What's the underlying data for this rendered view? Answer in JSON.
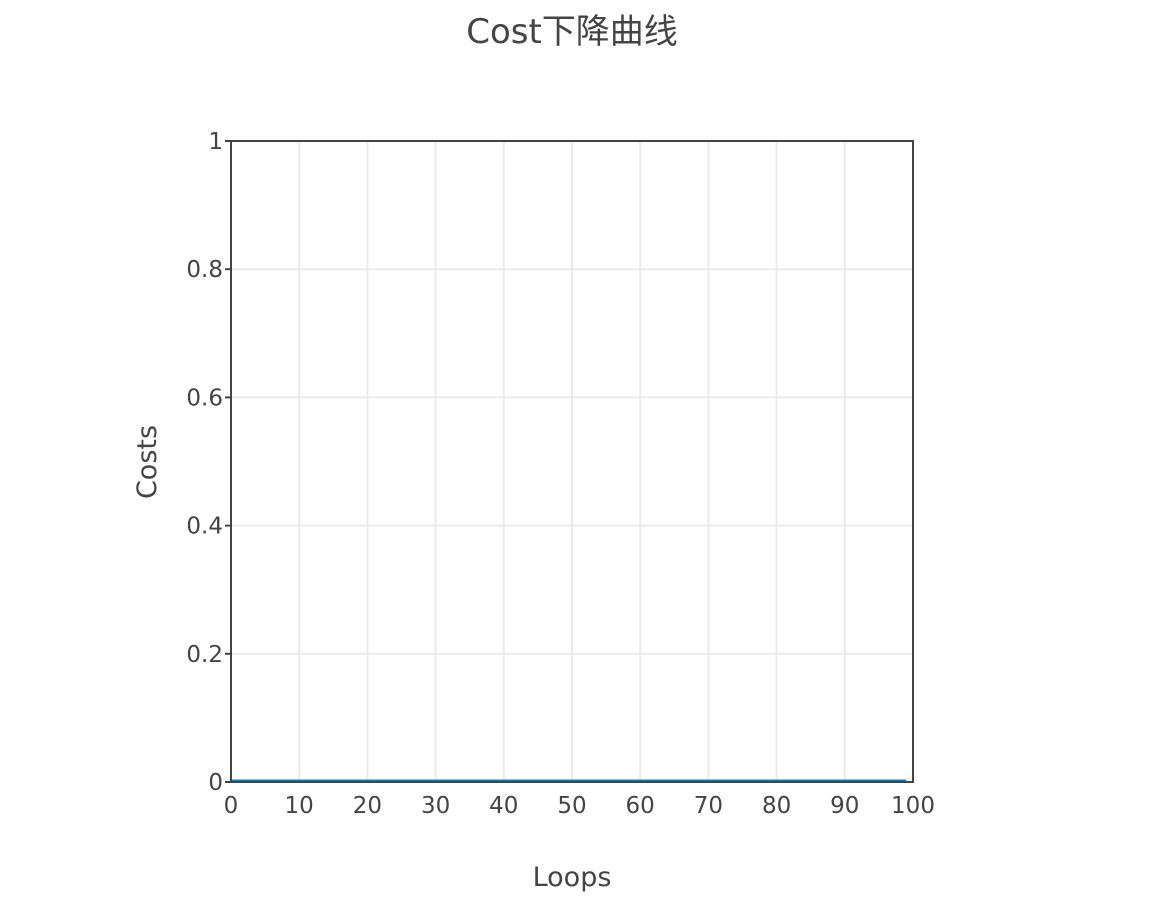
{
  "chart_data": {
    "type": "line",
    "title": "Cost下降曲线",
    "xlabel": "Loops",
    "ylabel": "Costs",
    "xlim": [
      0,
      100
    ],
    "ylim": [
      0,
      1
    ],
    "x_ticks": [
      0,
      10,
      20,
      30,
      40,
      50,
      60,
      70,
      80,
      90,
      100
    ],
    "x_tick_labels": [
      "0",
      "10",
      "20",
      "30",
      "40",
      "50",
      "60",
      "70",
      "80",
      "90",
      "100"
    ],
    "y_ticks": [
      0,
      0.2,
      0.4,
      0.6,
      0.8,
      1
    ],
    "y_tick_labels": [
      "0",
      "0.2",
      "0.4",
      "0.6",
      "0.8",
      "1"
    ],
    "grid": true,
    "legend": "none",
    "series": [
      {
        "color": "#1f77b4",
        "x": [
          0,
          10,
          20,
          30,
          40,
          50,
          60,
          70,
          80,
          90,
          99
        ],
        "y": [
          0,
          0,
          0,
          0,
          0,
          0,
          0,
          0,
          0,
          0,
          0
        ]
      }
    ]
  }
}
